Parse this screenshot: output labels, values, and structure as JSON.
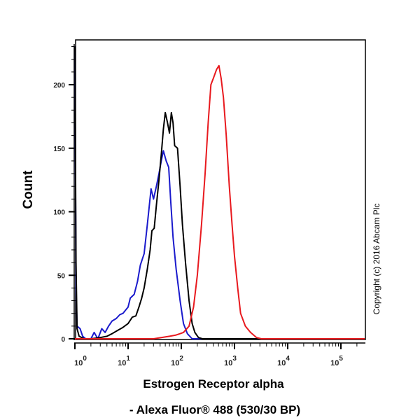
{
  "chart_data": {
    "type": "line",
    "title": "",
    "xlabel": "Estrogen Receptor alpha",
    "xlabel_line2": "- Alexa Fluor® 488 (530/30 BP)",
    "ylabel": "Count",
    "x_scale": "log",
    "xlim": [
      1,
      295000
    ],
    "ylim": [
      0,
      235
    ],
    "x_ticks": [
      {
        "base": "10",
        "exp": "0",
        "value": 1
      },
      {
        "base": "10",
        "exp": "1",
        "value": 10
      },
      {
        "base": "10",
        "exp": "2",
        "value": 100
      },
      {
        "base": "10",
        "exp": "3",
        "value": 1000
      },
      {
        "base": "10",
        "exp": "4",
        "value": 10000
      },
      {
        "base": "10",
        "exp": "5",
        "value": 100000
      }
    ],
    "y_ticks": [
      "0",
      "50",
      "100",
      "150",
      "200"
    ],
    "grid": false,
    "annotation": "Copyright (c) 2016 Abcam Plc",
    "series": [
      {
        "color": "#1a1acc",
        "points": [
          [
            1.0,
            230
          ],
          [
            1.05,
            40
          ],
          [
            1.1,
            10
          ],
          [
            1.25,
            8
          ],
          [
            1.4,
            2
          ],
          [
            1.6,
            0
          ],
          [
            2,
            0
          ],
          [
            2.3,
            5
          ],
          [
            2.7,
            0
          ],
          [
            3.2,
            8
          ],
          [
            3.7,
            5
          ],
          [
            4.3,
            10
          ],
          [
            5,
            14
          ],
          [
            6,
            16
          ],
          [
            7,
            19
          ],
          [
            8,
            20
          ],
          [
            10,
            25
          ],
          [
            11,
            32
          ],
          [
            13,
            35
          ],
          [
            15,
            45
          ],
          [
            17,
            58
          ],
          [
            20,
            67
          ],
          [
            23,
            90
          ],
          [
            27,
            118
          ],
          [
            30,
            110
          ],
          [
            34,
            120
          ],
          [
            38,
            130
          ],
          [
            42,
            140
          ],
          [
            46,
            148
          ],
          [
            52,
            140
          ],
          [
            58,
            135
          ],
          [
            63,
            110
          ],
          [
            70,
            80
          ],
          [
            80,
            55
          ],
          [
            95,
            30
          ],
          [
            110,
            12
          ],
          [
            130,
            4
          ],
          [
            160,
            0
          ],
          [
            295000,
            0
          ]
        ]
      },
      {
        "color": "#000000",
        "points": [
          [
            1.0,
            230
          ],
          [
            1.05,
            60
          ],
          [
            1.1,
            8
          ],
          [
            1.2,
            2
          ],
          [
            1.5,
            0
          ],
          [
            2,
            0
          ],
          [
            3,
            1
          ],
          [
            4,
            2
          ],
          [
            5,
            4
          ],
          [
            6,
            6
          ],
          [
            8,
            9
          ],
          [
            10,
            12
          ],
          [
            12,
            17
          ],
          [
            14,
            18
          ],
          [
            16,
            25
          ],
          [
            18,
            32
          ],
          [
            20,
            40
          ],
          [
            23,
            55
          ],
          [
            26,
            70
          ],
          [
            28,
            85
          ],
          [
            31,
            87
          ],
          [
            34,
            105
          ],
          [
            38,
            125
          ],
          [
            42,
            145
          ],
          [
            46,
            165
          ],
          [
            50,
            178
          ],
          [
            55,
            170
          ],
          [
            60,
            162
          ],
          [
            65,
            178
          ],
          [
            70,
            170
          ],
          [
            75,
            152
          ],
          [
            85,
            150
          ],
          [
            95,
            120
          ],
          [
            105,
            90
          ],
          [
            120,
            60
          ],
          [
            140,
            30
          ],
          [
            160,
            12
          ],
          [
            180,
            5
          ],
          [
            210,
            1
          ],
          [
            250,
            0
          ],
          [
            295000,
            0
          ]
        ]
      },
      {
        "color": "#e8191e",
        "points": [
          [
            1,
            0
          ],
          [
            30,
            0
          ],
          [
            60,
            2
          ],
          [
            80,
            3
          ],
          [
            110,
            5
          ],
          [
            140,
            10
          ],
          [
            170,
            25
          ],
          [
            200,
            50
          ],
          [
            240,
            90
          ],
          [
            280,
            130
          ],
          [
            320,
            170
          ],
          [
            360,
            200
          ],
          [
            400,
            205
          ],
          [
            460,
            212
          ],
          [
            510,
            215
          ],
          [
            560,
            205
          ],
          [
            620,
            190
          ],
          [
            700,
            160
          ],
          [
            800,
            120
          ],
          [
            900,
            90
          ],
          [
            1000,
            65
          ],
          [
            1150,
            40
          ],
          [
            1300,
            20
          ],
          [
            1600,
            10
          ],
          [
            2000,
            5
          ],
          [
            2600,
            1
          ],
          [
            3200,
            0
          ],
          [
            295000,
            0
          ]
        ]
      }
    ]
  }
}
